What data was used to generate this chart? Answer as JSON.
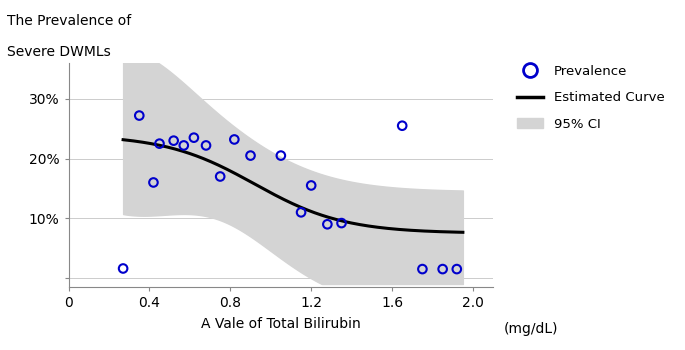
{
  "scatter_x": [
    0.27,
    0.35,
    0.42,
    0.45,
    0.52,
    0.57,
    0.62,
    0.68,
    0.75,
    0.82,
    0.9,
    1.05,
    1.15,
    1.2,
    1.28,
    1.35,
    1.65,
    1.75,
    1.85,
    1.92
  ],
  "scatter_y": [
    0.016,
    0.272,
    0.16,
    0.225,
    0.23,
    0.222,
    0.235,
    0.222,
    0.17,
    0.232,
    0.205,
    0.205,
    0.11,
    0.155,
    0.09,
    0.092,
    0.255,
    0.015,
    0.015,
    0.015
  ],
  "curve_x_start": 0.27,
  "curve_x_end": 1.95,
  "title_line1": "The Prevalence of",
  "title_line2": "Severe DWMLs",
  "xlabel": "A Vale of Total Bilirubin",
  "xlabel_unit": "(mg/dL)",
  "xlim": [
    0,
    2.1
  ],
  "ylim": [
    -0.015,
    0.36
  ],
  "yticks": [
    0.0,
    0.1,
    0.2,
    0.3
  ],
  "ytick_labels": [
    "",
    "10%",
    "20%",
    "30%"
  ],
  "xticks": [
    0,
    0.4,
    0.8,
    1.2,
    1.6,
    2.0
  ],
  "scatter_color": "#0000CC",
  "curve_color": "#000000",
  "ci_color": "#D4D4D4",
  "background_color": "#FFFFFF",
  "grid_color": "#CCCCCC"
}
